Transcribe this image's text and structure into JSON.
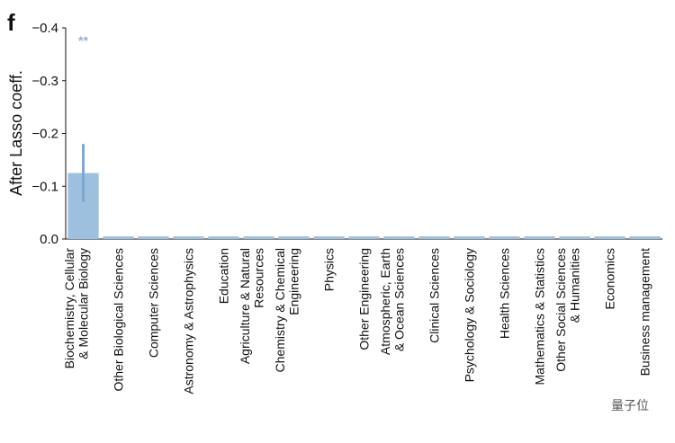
{
  "chart_data": {
    "type": "bar",
    "panel_label": "f",
    "ylabel": "After Lasso coeff.",
    "annotation": "**",
    "watermark": "量子位",
    "categories": [
      "Biochemistry, Cellular\n& Molecular Biology",
      "Other Biological Sciences",
      "Computer Sciences",
      "Astronomy & Astrophysics",
      "Education",
      "Agriculture & Natural\nResources",
      "Chemistry & Chemical\nEngineering",
      "Physics",
      "Other Engineering",
      "Atmospheric, Earth\n& Ocean Sciences",
      "Clinical Sciences",
      "Psychology & Sociology",
      "Health Sciences",
      "Mathematics & Statistics",
      "Other Social Sciences\n& Humanities",
      "Economics",
      "Business management"
    ],
    "values": [
      -0.125,
      -0.005,
      -0.005,
      -0.005,
      -0.005,
      -0.005,
      -0.005,
      -0.005,
      -0.005,
      -0.005,
      -0.005,
      -0.005,
      -0.005,
      -0.005,
      -0.005,
      -0.005,
      -0.005
    ],
    "errors": [
      0.055,
      null,
      null,
      null,
      null,
      null,
      null,
      null,
      null,
      null,
      null,
      null,
      null,
      null,
      null,
      null,
      null
    ],
    "color": "#9dc0de",
    "error_color": "#7ea8d2",
    "annotation_color": "#8fb4db",
    "ylim": [
      0,
      -0.4
    ],
    "yticks": [
      {
        "value": 0,
        "label": "0.0"
      },
      {
        "value": -0.1,
        "label": "−0.1"
      },
      {
        "value": -0.2,
        "label": "−0.2"
      },
      {
        "value": -0.3,
        "label": "−0.3"
      },
      {
        "value": -0.4,
        "label": "−0.4"
      }
    ],
    "grid": false
  }
}
